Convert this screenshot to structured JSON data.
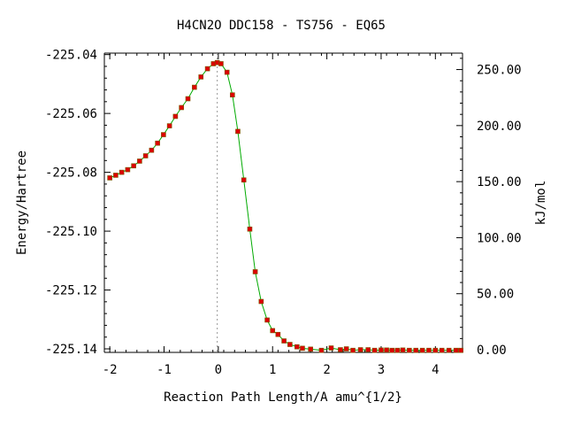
{
  "chart_data": {
    "type": "line",
    "title": "H4CN2O   DDC158 - TS756 - EQ65",
    "xlabel": "Reaction Path Length/A amu^{1/2}",
    "ylabel": "Energy/Hartree",
    "y2label": "kJ/mol",
    "xlim": [
      -2.1,
      4.5
    ],
    "ylim": [
      -225.1412,
      -225.0395
    ],
    "y2lim": [
      -2.36,
      264.65
    ],
    "x_ticks": [
      -2,
      -1,
      0,
      1,
      2,
      3,
      4
    ],
    "x_tick_labels": [
      "-2",
      "-1",
      "0",
      "1",
      "2",
      "3",
      "4"
    ],
    "y_ticks": [
      -225.04,
      -225.06,
      -225.08,
      -225.1,
      -225.12,
      -225.14
    ],
    "y_tick_labels": [
      "-225.04",
      "-225.06",
      "-225.08",
      "-225.10",
      "-225.12",
      "-225.14"
    ],
    "y2_ticks": [
      0,
      50,
      100,
      150,
      200,
      250
    ],
    "y2_tick_labels": [
      "0.00",
      "50.00",
      "100.00",
      "150.00",
      "200.00",
      "250.00"
    ],
    "ts_line_x": -0.02,
    "grid": false,
    "series": [
      {
        "color": "#00aa00",
        "marker_color": "#dd0000",
        "points": [
          [
            -2.0,
            -225.0819
          ],
          [
            -1.89,
            -225.081
          ],
          [
            -1.78,
            -225.08
          ],
          [
            -1.67,
            -225.0791
          ],
          [
            -1.56,
            -225.0778
          ],
          [
            -1.45,
            -225.0762
          ],
          [
            -1.34,
            -225.0744
          ],
          [
            -1.23,
            -225.0725
          ],
          [
            -1.12,
            -225.0701
          ],
          [
            -1.01,
            -225.0672
          ],
          [
            -0.9,
            -225.0642
          ],
          [
            -0.79,
            -225.061
          ],
          [
            -0.68,
            -225.058
          ],
          [
            -0.56,
            -225.055
          ],
          [
            -0.44,
            -225.0511
          ],
          [
            -0.32,
            -225.0476
          ],
          [
            -0.2,
            -225.0448
          ],
          [
            -0.09,
            -225.0431
          ],
          [
            -0.02,
            -225.0427
          ],
          [
            0.05,
            -225.0431
          ],
          [
            0.16,
            -225.046
          ],
          [
            0.26,
            -225.0537
          ],
          [
            0.36,
            -225.0661
          ],
          [
            0.47,
            -225.0826
          ],
          [
            0.58,
            -225.0993
          ],
          [
            0.68,
            -225.1138
          ],
          [
            0.79,
            -225.1239
          ],
          [
            0.9,
            -225.1302
          ],
          [
            1.0,
            -225.1338
          ],
          [
            1.1,
            -225.1351
          ],
          [
            1.21,
            -225.1373
          ],
          [
            1.32,
            -225.1385
          ],
          [
            1.45,
            -225.1393
          ],
          [
            1.55,
            -225.1398
          ],
          [
            1.7,
            -225.1401
          ],
          [
            1.9,
            -225.1405
          ],
          [
            2.08,
            -225.1397
          ],
          [
            2.25,
            -225.1403
          ],
          [
            2.36,
            -225.14
          ],
          [
            2.48,
            -225.1405
          ],
          [
            2.62,
            -225.1403
          ],
          [
            2.76,
            -225.1403
          ],
          [
            2.88,
            -225.1405
          ],
          [
            3.0,
            -225.1404
          ],
          [
            3.1,
            -225.1404
          ],
          [
            3.2,
            -225.1405
          ],
          [
            3.3,
            -225.1405
          ],
          [
            3.4,
            -225.1404
          ],
          [
            3.52,
            -225.1405
          ],
          [
            3.64,
            -225.1405
          ],
          [
            3.76,
            -225.1405
          ],
          [
            3.88,
            -225.1405
          ],
          [
            4.0,
            -225.1405
          ],
          [
            4.12,
            -225.1405
          ],
          [
            4.25,
            -225.1405
          ],
          [
            4.38,
            -225.1405
          ],
          [
            4.47,
            -225.1405
          ]
        ]
      }
    ]
  }
}
